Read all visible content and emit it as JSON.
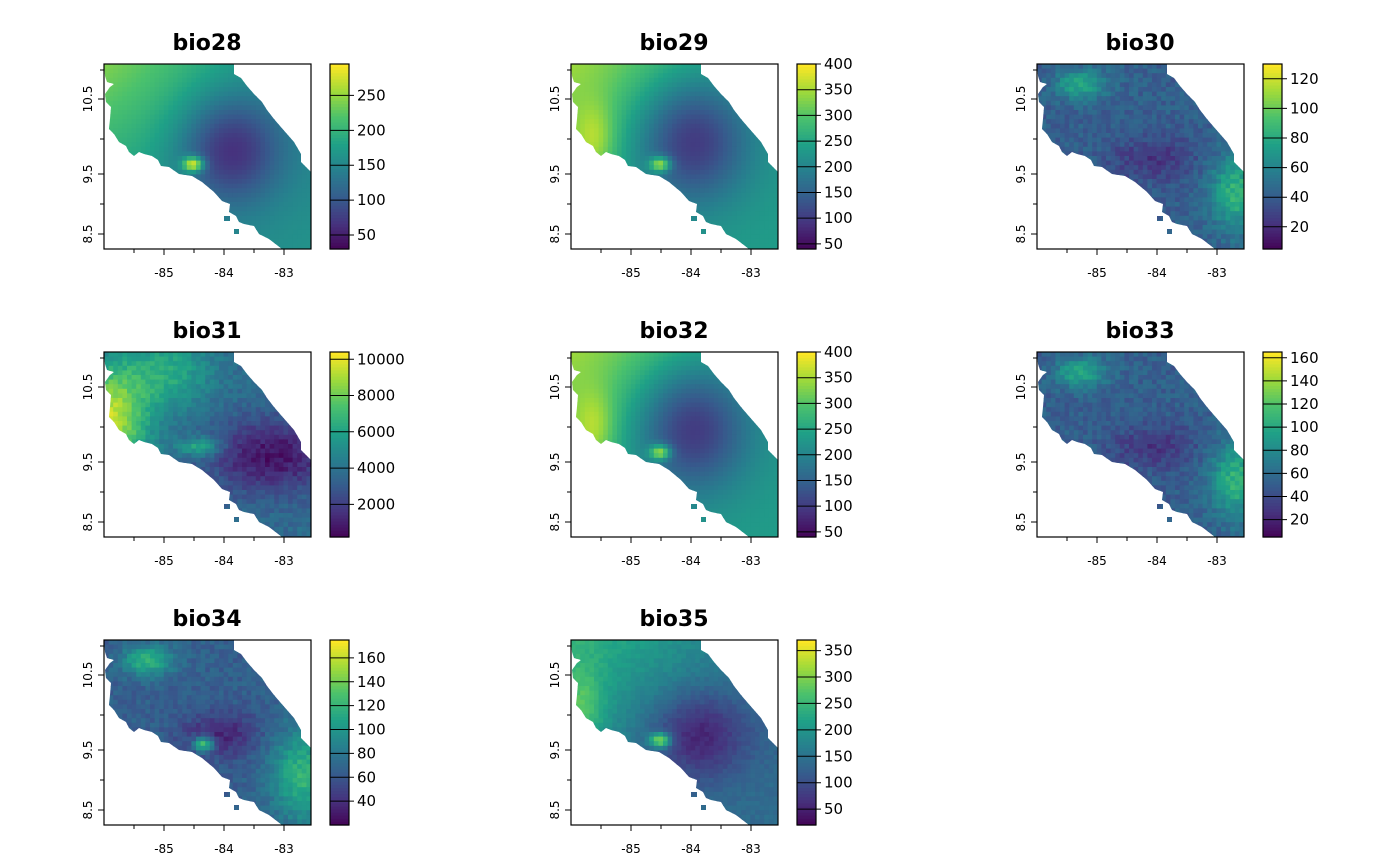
{
  "axes": {
    "x_ticks": [
      "-85",
      "-84",
      "-83"
    ],
    "y_ticks": [
      "8.5",
      "9.5",
      "10.5"
    ]
  },
  "palette": [
    "#440154",
    "#46337E",
    "#365C8D",
    "#277F8E",
    "#1FA187",
    "#4AC16D",
    "#9FDA3A",
    "#FDE725"
  ],
  "panels": [
    {
      "title": "bio28",
      "pattern": "p28",
      "min": 30,
      "max": 295,
      "legend_ticks": [
        50,
        100,
        150,
        200,
        250
      ]
    },
    {
      "title": "bio29",
      "pattern": "p29",
      "min": 40,
      "max": 400,
      "legend_ticks": [
        50,
        100,
        150,
        200,
        250,
        300,
        350,
        400
      ]
    },
    {
      "title": "bio30",
      "pattern": "p30",
      "min": 5,
      "max": 130,
      "legend_ticks": [
        20,
        40,
        60,
        80,
        100,
        120
      ]
    },
    {
      "title": "bio31",
      "pattern": "p31",
      "min": 200,
      "max": 10400,
      "legend_ticks": [
        2000,
        4000,
        6000,
        8000,
        10000
      ]
    },
    {
      "title": "bio32",
      "pattern": "p29",
      "min": 40,
      "max": 400,
      "legend_ticks": [
        50,
        100,
        150,
        200,
        250,
        300,
        350,
        400
      ]
    },
    {
      "title": "bio33",
      "pattern": "p30",
      "min": 5,
      "max": 165,
      "legend_ticks": [
        20,
        40,
        60,
        80,
        100,
        120,
        140,
        160
      ]
    },
    {
      "title": "bio34",
      "pattern": "p34",
      "min": 20,
      "max": 175,
      "legend_ticks": [
        40,
        60,
        80,
        100,
        120,
        140,
        160
      ]
    },
    {
      "title": "bio35",
      "pattern": "p35",
      "min": 20,
      "max": 370,
      "legend_ticks": [
        50,
        100,
        150,
        200,
        250,
        300,
        350
      ]
    }
  ]
}
